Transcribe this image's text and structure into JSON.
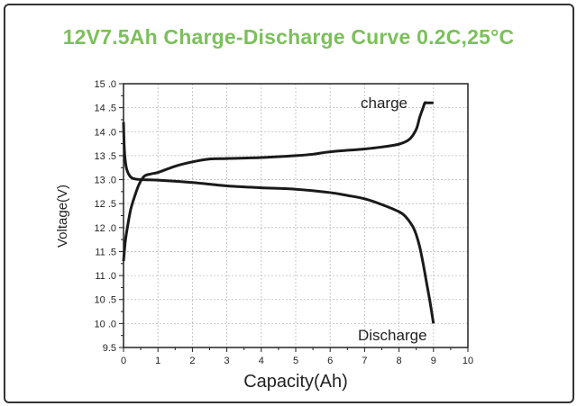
{
  "chart_data": {
    "type": "line",
    "title": "12V7.5Ah Charge-Discharge Curve 0.2C,25°C",
    "xlabel": "Capacity(Ah)",
    "ylabel": "Voltage(V)",
    "xlim": [
      0,
      10
    ],
    "ylim": [
      9.5,
      15
    ],
    "x_ticks": [
      "0",
      "1",
      "2",
      "3",
      "4",
      "5",
      "6",
      "7",
      "8",
      "9",
      "10"
    ],
    "y_ticks": [
      {
        "v": 15,
        "label": "15 .0"
      },
      {
        "v": 14.5,
        "label": "14 .5"
      },
      {
        "v": 14,
        "label": "14 .0"
      },
      {
        "v": 13.5,
        "label": "13 .5"
      },
      {
        "v": 13,
        "label": "13 .0"
      },
      {
        "v": 12.5,
        "label": "12 .5"
      },
      {
        "v": 12,
        "label": "12 .0"
      },
      {
        "v": 11.5,
        "label": "11 .5"
      },
      {
        "v": 11,
        "label": "11 .0"
      },
      {
        "v": 10.5,
        "label": "10 .5"
      },
      {
        "v": 10,
        "label": "10 .0"
      },
      {
        "v": 9.5,
        "label": "9.5"
      }
    ],
    "grid": true,
    "series": [
      {
        "name": "charge",
        "x": [
          0,
          0.05,
          0.1,
          0.2,
          0.3,
          0.45,
          0.6,
          0.8,
          1,
          1.5,
          2,
          2.5,
          3,
          4,
          5,
          5.5,
          6,
          7,
          7.5,
          8,
          8.3,
          8.5,
          8.6,
          8.7,
          8.75,
          8.8,
          9
        ],
        "y": [
          11.3,
          11.7,
          11.95,
          12.35,
          12.6,
          12.9,
          13.07,
          13.12,
          13.15,
          13.28,
          13.37,
          13.43,
          13.44,
          13.46,
          13.5,
          13.53,
          13.58,
          13.64,
          13.68,
          13.74,
          13.84,
          14.05,
          14.3,
          14.5,
          14.6,
          14.6,
          14.6
        ]
      },
      {
        "name": "Discharge",
        "x": [
          0,
          0.02,
          0.05,
          0.1,
          0.2,
          0.3,
          0.5,
          1,
          2,
          3,
          4,
          5,
          6,
          6.5,
          7,
          7.5,
          8,
          8.2,
          8.4,
          8.5,
          8.6,
          8.7,
          8.8,
          8.9,
          9
        ],
        "y": [
          14.2,
          13.7,
          13.4,
          13.2,
          13.06,
          13.02,
          13.0,
          12.99,
          12.94,
          12.87,
          12.83,
          12.8,
          12.73,
          12.67,
          12.6,
          12.48,
          12.33,
          12.22,
          12.02,
          11.85,
          11.6,
          11.25,
          10.85,
          10.45,
          10.0
        ]
      }
    ],
    "annotations": [
      "charge",
      "Discharge"
    ],
    "colors": {
      "title": "#7cc05c",
      "line": "#1a1a1a",
      "grid": "#bbbbbb"
    }
  }
}
